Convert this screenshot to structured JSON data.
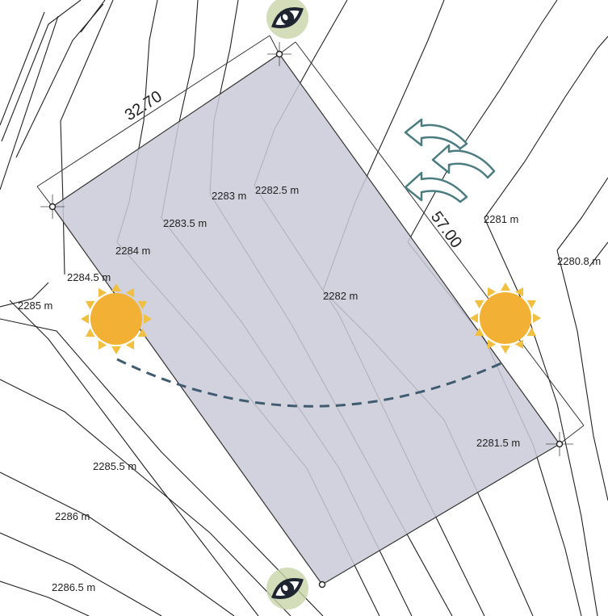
{
  "dimensions": {
    "width_label": "32.70",
    "length_label": "57.00"
  },
  "contours": [
    {
      "id": "2280-8",
      "label": "2280.8 m"
    },
    {
      "id": "2281",
      "label": "2281 m"
    },
    {
      "id": "2281-5",
      "label": "2281.5 m"
    },
    {
      "id": "2282",
      "label": "2282 m"
    },
    {
      "id": "2282-5",
      "label": "2282.5 m"
    },
    {
      "id": "2283",
      "label": "2283 m"
    },
    {
      "id": "2283-5",
      "label": "2283.5 m"
    },
    {
      "id": "2284",
      "label": "2284 m"
    },
    {
      "id": "2284-5",
      "label": "2284.5 m"
    },
    {
      "id": "2285",
      "label": "2285 m"
    },
    {
      "id": "2285-5",
      "label": "2285.5 m"
    },
    {
      "id": "2286",
      "label": "2286 m"
    },
    {
      "id": "2286-5",
      "label": "2286.5 m"
    }
  ],
  "icons": {
    "sun": "sun-icon",
    "wind": "wind-arrow-icon",
    "view": "eye-icon"
  },
  "colors": {
    "lot_fill": "#c9cad8",
    "sun": "#f2b134",
    "sun_path": "#3f5b6f",
    "wind": "#4a7c80"
  }
}
